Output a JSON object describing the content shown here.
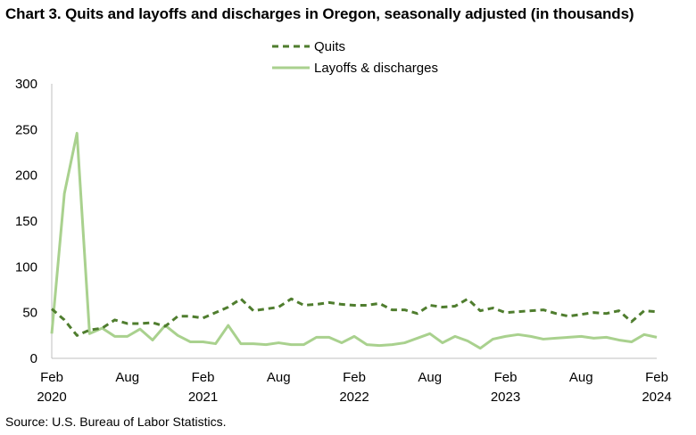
{
  "chart_data": {
    "type": "line",
    "title": "Chart 3. Quits and layoffs and discharges in Oregon, seasonally adjusted (in thousands)",
    "source": "Source: U.S. Bureau of Labor Statistics.",
    "ylim": [
      0,
      300
    ],
    "yticks": [
      0,
      50,
      100,
      150,
      200,
      250,
      300
    ],
    "grid": false,
    "legend_position": "top-center",
    "x_start": "2020-02",
    "x_tick_labels": [
      {
        "month": "Feb",
        "year": "2020",
        "index": 0
      },
      {
        "month": "Aug",
        "year": "",
        "index": 6
      },
      {
        "month": "Feb",
        "year": "2021",
        "index": 12
      },
      {
        "month": "Aug",
        "year": "",
        "index": 18
      },
      {
        "month": "Feb",
        "year": "2022",
        "index": 24
      },
      {
        "month": "Aug",
        "year": "",
        "index": 30
      },
      {
        "month": "Feb",
        "year": "2023",
        "index": 36
      },
      {
        "month": "Aug",
        "year": "",
        "index": 42
      },
      {
        "month": "Feb",
        "year": "2024",
        "index": 48
      }
    ],
    "series": [
      {
        "name": "Quits",
        "color": "#4f7d2e",
        "style": "dashed",
        "values": [
          54,
          42,
          25,
          31,
          33,
          42,
          38,
          38,
          39,
          35,
          46,
          46,
          44,
          50,
          56,
          65,
          52,
          54,
          56,
          65,
          58,
          59,
          61,
          59,
          58,
          58,
          60,
          53,
          53,
          49,
          58,
          56,
          57,
          65,
          52,
          55,
          50,
          51,
          52,
          53,
          49,
          46,
          48,
          50,
          49,
          52,
          40,
          52,
          51
        ]
      },
      {
        "name": "Layoffs & discharges",
        "color": "#a9d18e",
        "style": "solid",
        "values": [
          27,
          180,
          246,
          27,
          33,
          24,
          24,
          32,
          20,
          36,
          25,
          18,
          18,
          16,
          36,
          16,
          16,
          15,
          17,
          15,
          15,
          23,
          23,
          17,
          24,
          15,
          14,
          15,
          17,
          22,
          27,
          17,
          24,
          19,
          11,
          21,
          24,
          26,
          24,
          21,
          22,
          23,
          24,
          22,
          23,
          20,
          18,
          26,
          23
        ]
      }
    ]
  }
}
